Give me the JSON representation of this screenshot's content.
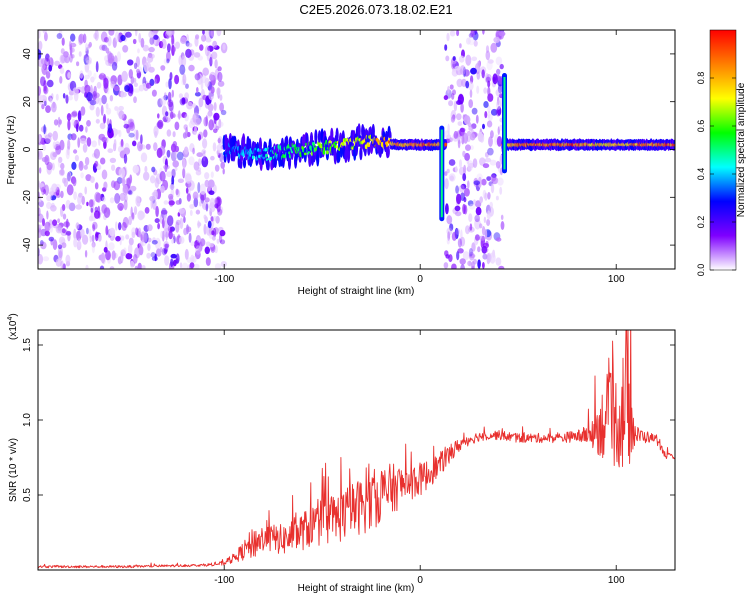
{
  "figure_title": "C2E5.2026.073.18.02.E21",
  "chart_data": [
    {
      "type": "heatmap",
      "title": "C2E5.2026.073.18.02.E21",
      "xlabel": "Height of straight line (km)",
      "ylabel": "Frequency (Hz)",
      "xlim": [
        -195,
        130
      ],
      "ylim": [
        -50,
        50
      ],
      "xticks": [
        -100,
        0,
        100
      ],
      "yticks": [
        -40,
        -20,
        0,
        20,
        40
      ],
      "xtick_labels": [
        "-100",
        "0",
        "100"
      ],
      "ytick_labels": [
        "-40",
        "-20",
        "0",
        "20",
        "40"
      ],
      "colorbar": {
        "label": "Normalized spectral amplitude",
        "range": [
          0,
          1
        ],
        "ticks": [
          0.0,
          0.2,
          0.4,
          0.6,
          0.8
        ],
        "tick_labels": [
          "0.0",
          "0.2",
          "0.4",
          "0.6",
          "0.8"
        ],
        "colormap": [
          "#ffffff",
          "#7f00ff",
          "#0000ff",
          "#00ffff",
          "#00ff00",
          "#ffff00",
          "#ff7f00",
          "#ff0000"
        ]
      },
      "noise_regions": [
        {
          "x_start": -195,
          "x_end": -100,
          "freq_range": [
            -50,
            50
          ],
          "level": 0.15
        },
        {
          "x_start": 13,
          "x_end": 42,
          "freq_range": [
            -50,
            50
          ],
          "level": 0.15
        }
      ],
      "signal_track": {
        "x": [
          -100,
          -90,
          -80,
          -70,
          -60,
          -50,
          -40,
          -30,
          -20,
          -10,
          0,
          10,
          44,
          60,
          80,
          90,
          100,
          110,
          130
        ],
        "frequency": [
          0,
          -1,
          -2,
          -1,
          0,
          1,
          2,
          3,
          3,
          2,
          2,
          2,
          2,
          2,
          2,
          2,
          2,
          2,
          2
        ],
        "amplitude": [
          0.35,
          0.4,
          0.45,
          0.55,
          0.6,
          0.65,
          0.7,
          0.75,
          0.85,
          0.9,
          0.95,
          0.9,
          0.9,
          0.95,
          0.95,
          0.85,
          0.8,
          0.9,
          0.95
        ]
      },
      "transients": [
        {
          "x": 11,
          "freq_range": [
            -30,
            10
          ]
        },
        {
          "x": 43,
          "freq_range": [
            -10,
            32
          ]
        }
      ]
    },
    {
      "type": "line",
      "xlabel": "Height of straight line (km)",
      "ylabel": "SNR (10 * v/v)",
      "y_multiplier": "(x10",
      "y_multiplier_exp": "4",
      "y_multiplier_close": ")",
      "xlim": [
        -195,
        130
      ],
      "ylim": [
        0,
        1.6
      ],
      "xticks": [
        -100,
        0,
        100
      ],
      "yticks": [
        0.5,
        1.0,
        1.5
      ],
      "xtick_labels": [
        "-100",
        "0",
        "100"
      ],
      "ytick_labels": [
        "0.5",
        "1.0",
        "1.5"
      ],
      "series": [
        {
          "name": "SNR",
          "color": "#e8302e",
          "x": [
            -195,
            -150,
            -110,
            -100,
            -95,
            -90,
            -85,
            -80,
            -75,
            -70,
            -65,
            -60,
            -55,
            -50,
            -45,
            -40,
            -35,
            -30,
            -25,
            -20,
            -15,
            -10,
            -5,
            0,
            5,
            10,
            15,
            20,
            25,
            30,
            35,
            40,
            45,
            50,
            60,
            70,
            80,
            85,
            90,
            95,
            100,
            105,
            110,
            120,
            125,
            130
          ],
          "y": [
            0.02,
            0.02,
            0.03,
            0.04,
            0.07,
            0.11,
            0.15,
            0.18,
            0.18,
            0.17,
            0.19,
            0.22,
            0.25,
            0.27,
            0.28,
            0.31,
            0.35,
            0.37,
            0.4,
            0.45,
            0.48,
            0.52,
            0.55,
            0.57,
            0.62,
            0.68,
            0.75,
            0.82,
            0.86,
            0.88,
            0.89,
            0.89,
            0.88,
            0.87,
            0.87,
            0.87,
            0.88,
            0.88,
            0.89,
            0.92,
            0.9,
            0.95,
            0.88,
            0.87,
            0.76,
            0.74
          ],
          "spread": [
            0.01,
            0.01,
            0.01,
            0.02,
            0.04,
            0.08,
            0.14,
            0.12,
            0.12,
            0.13,
            0.15,
            0.16,
            0.18,
            0.2,
            0.22,
            0.22,
            0.22,
            0.24,
            0.25,
            0.25,
            0.22,
            0.18,
            0.16,
            0.14,
            0.12,
            0.1,
            0.08,
            0.06,
            0.05,
            0.04,
            0.04,
            0.04,
            0.04,
            0.04,
            0.04,
            0.04,
            0.05,
            0.08,
            0.2,
            0.38,
            0.4,
            0.6,
            0.08,
            0.03,
            0.03,
            0.02
          ]
        }
      ]
    }
  ]
}
